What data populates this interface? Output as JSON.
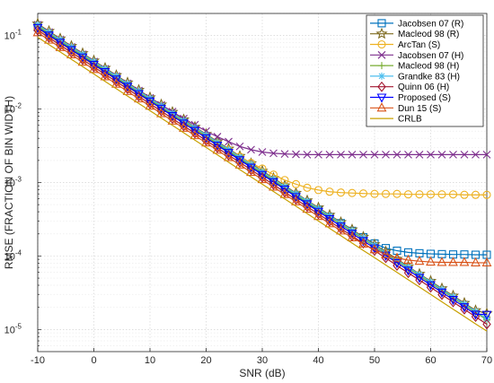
{
  "chart_data": {
    "type": "line",
    "xlabel": "SNR (dB)",
    "ylabel": "RMSE (FRACTION OF BIN WIDTH)",
    "xlim": [
      -10,
      70
    ],
    "ylim": [
      5e-06,
      0.2
    ],
    "yscale": "log",
    "grid": true,
    "legend_position": "top-right",
    "x": [
      -10,
      -8,
      -6,
      -4,
      -2,
      0,
      2,
      4,
      6,
      8,
      10,
      12,
      14,
      16,
      18,
      20,
      22,
      24,
      26,
      28,
      30,
      32,
      34,
      36,
      38,
      40,
      42,
      44,
      46,
      48,
      50,
      52,
      54,
      56,
      58,
      60,
      62,
      64,
      66,
      68,
      70
    ],
    "xticks": [
      -10,
      0,
      10,
      20,
      30,
      40,
      50,
      60,
      70
    ],
    "xtick_labels": [
      "-10",
      "0",
      "10",
      "20",
      "30",
      "40",
      "50",
      "60",
      "70"
    ],
    "yticks": [
      1e-05,
      0.0001,
      0.001,
      0.01,
      0.1
    ],
    "series": [
      {
        "name": "Jacobsen 07 (R)",
        "color": "#0072BD",
        "marker": "square",
        "values": [
          0.13,
          0.103,
          0.082,
          0.065,
          0.0518,
          0.0411,
          0.0327,
          0.026,
          0.0206,
          0.0164,
          0.013,
          0.0103,
          0.0082,
          0.0065,
          0.0052,
          0.0041,
          0.00327,
          0.0026,
          0.00206,
          0.00164,
          0.0013,
          0.00104,
          0.00082,
          0.00066,
          0.00052,
          0.00042,
          0.00034,
          0.00028,
          0.00022,
          0.00018,
          0.000148,
          0.000128,
          0.000118,
          0.000112,
          0.000109,
          0.000107,
          0.000106,
          0.000105,
          0.000105,
          0.000104,
          0.000104
        ]
      },
      {
        "name": "Macleod 98 (R)",
        "color": "#7E6A1F",
        "marker": "star",
        "values": [
          0.145,
          0.115,
          0.091,
          0.072,
          0.0574,
          0.0456,
          0.0362,
          0.0288,
          0.0229,
          0.0182,
          0.0144,
          0.0115,
          0.0091,
          0.0072,
          0.0057,
          0.00456,
          0.00362,
          0.00288,
          0.00229,
          0.00182,
          0.00144,
          0.00115,
          0.00091,
          0.00072,
          0.00057,
          0.000456,
          0.000362,
          0.000288,
          0.000229,
          0.000182,
          0.000144,
          0.000115,
          9.1e-05,
          7.2e-05,
          5.7e-05,
          4.56e-05,
          3.62e-05,
          2.88e-05,
          2.29e-05,
          1.82e-05,
          1.65e-05
        ]
      },
      {
        "name": "ArcTan (S)",
        "color": "#EDB120",
        "marker": "circle",
        "values": [
          0.125,
          0.099,
          0.079,
          0.063,
          0.05,
          0.0397,
          0.0316,
          0.0251,
          0.02,
          0.0159,
          0.0127,
          0.0101,
          0.0081,
          0.0065,
          0.0052,
          0.0042,
          0.0034,
          0.0028,
          0.00225,
          0.00185,
          0.00155,
          0.00128,
          0.00108,
          0.00095,
          0.00085,
          0.00079,
          0.00075,
          0.00073,
          0.00072,
          0.00071,
          0.0007,
          0.0007,
          0.0007,
          0.00069,
          0.00069,
          0.00069,
          0.00069,
          0.00069,
          0.00068,
          0.00068,
          0.00068
        ]
      },
      {
        "name": "Jacobsen 07 (H)",
        "color": "#7E2F8E",
        "marker": "x",
        "values": [
          0.14,
          0.111,
          0.088,
          0.07,
          0.0557,
          0.0443,
          0.0352,
          0.028,
          0.0223,
          0.0178,
          0.0142,
          0.0114,
          0.0092,
          0.0074,
          0.0061,
          0.005,
          0.0042,
          0.0036,
          0.0031,
          0.0028,
          0.0026,
          0.0025,
          0.00245,
          0.00242,
          0.0024,
          0.0024,
          0.0024,
          0.0024,
          0.0024,
          0.0024,
          0.0024,
          0.0024,
          0.0024,
          0.0024,
          0.0024,
          0.0024,
          0.0024,
          0.0024,
          0.0024,
          0.0024,
          0.0024
        ]
      },
      {
        "name": "Macleod 98 (H)",
        "color": "#77AC30",
        "marker": "plus",
        "values": [
          0.135,
          0.107,
          0.085,
          0.0677,
          0.0538,
          0.0427,
          0.034,
          0.027,
          0.0214,
          0.017,
          0.0135,
          0.0107,
          0.0085,
          0.0068,
          0.0054,
          0.00427,
          0.0034,
          0.0027,
          0.00214,
          0.0017,
          0.00135,
          0.00107,
          0.00085,
          0.00068,
          0.00054,
          0.000427,
          0.00034,
          0.00027,
          0.000214,
          0.00017,
          0.000135,
          0.000107,
          8.5e-05,
          6.8e-05,
          5.4e-05,
          4.27e-05,
          3.4e-05,
          2.7e-05,
          2.14e-05,
          1.7e-05,
          1.35e-05
        ]
      },
      {
        "name": "Grandke 83 (H)",
        "color": "#4DBEEE",
        "marker": "asterisk",
        "values": [
          0.14,
          0.111,
          0.088,
          0.07,
          0.0557,
          0.0443,
          0.0352,
          0.028,
          0.0222,
          0.0176,
          0.014,
          0.0111,
          0.0088,
          0.007,
          0.0056,
          0.00443,
          0.00352,
          0.0028,
          0.00222,
          0.00176,
          0.0014,
          0.00111,
          0.00088,
          0.0007,
          0.00056,
          0.000443,
          0.000352,
          0.00028,
          0.000222,
          0.000176,
          0.00014,
          0.000111,
          8.8e-05,
          7e-05,
          5.6e-05,
          4.43e-05,
          3.52e-05,
          2.8e-05,
          2.22e-05,
          1.76e-05,
          1.4e-05
        ]
      },
      {
        "name": "Quinn 06 (H)",
        "color": "#A2142F",
        "marker": "diamond",
        "values": [
          0.118,
          0.094,
          0.074,
          0.059,
          0.047,
          0.0374,
          0.0297,
          0.0236,
          0.0188,
          0.0149,
          0.0118,
          0.0094,
          0.0074,
          0.0059,
          0.0047,
          0.00374,
          0.00297,
          0.00236,
          0.00188,
          0.00149,
          0.00118,
          0.00094,
          0.00074,
          0.00059,
          0.00047,
          0.000374,
          0.000297,
          0.000236,
          0.000188,
          0.000149,
          0.000118,
          9.4e-05,
          7.4e-05,
          5.9e-05,
          4.7e-05,
          3.74e-05,
          2.97e-05,
          2.36e-05,
          1.88e-05,
          1.49e-05,
          1.18e-05
        ]
      },
      {
        "name": "Proposed (S)",
        "color": "#0000FF",
        "marker": "triangle-down",
        "values": [
          0.128,
          0.101,
          0.0805,
          0.064,
          0.0508,
          0.0404,
          0.0321,
          0.0255,
          0.0203,
          0.0161,
          0.0128,
          0.0102,
          0.0081,
          0.0064,
          0.0051,
          0.00404,
          0.00321,
          0.00255,
          0.00203,
          0.00161,
          0.00128,
          0.00102,
          0.00081,
          0.00064,
          0.00051,
          0.000404,
          0.000321,
          0.000255,
          0.000203,
          0.000161,
          0.000128,
          0.000102,
          8.1e-05,
          6.4e-05,
          5.1e-05,
          4.04e-05,
          3.21e-05,
          2.55e-05,
          2.03e-05,
          1.61e-05,
          1.6e-05
        ]
      },
      {
        "name": "Dun 15 (S)",
        "color": "#D95319",
        "marker": "triangle-up",
        "values": [
          0.11,
          0.087,
          0.069,
          0.055,
          0.0436,
          0.0347,
          0.0276,
          0.0219,
          0.0174,
          0.0138,
          0.011,
          0.0087,
          0.0069,
          0.0055,
          0.00436,
          0.00347,
          0.00276,
          0.00219,
          0.00174,
          0.00138,
          0.0011,
          0.00087,
          0.00069,
          0.00055,
          0.000436,
          0.000347,
          0.000276,
          0.00022,
          0.000178,
          0.000146,
          0.000122,
          0.000105,
          9.4e-05,
          8.8e-05,
          8.5e-05,
          8.3e-05,
          8.2e-05,
          8.2e-05,
          8.2e-05,
          8.1e-05,
          8.1e-05
        ]
      },
      {
        "name": "CRLB",
        "color": "#C8A000",
        "marker": "none",
        "values": [
          0.095,
          0.0754,
          0.0599,
          0.0476,
          0.0378,
          0.03,
          0.0238,
          0.0189,
          0.015,
          0.0119,
          0.0095,
          0.00754,
          0.00599,
          0.00476,
          0.00378,
          0.003,
          0.00238,
          0.00189,
          0.0015,
          0.00119,
          0.00095,
          0.000754,
          0.000599,
          0.000476,
          0.000378,
          0.0003,
          0.000238,
          0.000189,
          0.00015,
          0.000119,
          9.5e-05,
          7.54e-05,
          5.99e-05,
          4.76e-05,
          3.78e-05,
          3e-05,
          2.38e-05,
          1.89e-05,
          1.5e-05,
          1.19e-05,
          9.5e-06
        ]
      }
    ]
  }
}
